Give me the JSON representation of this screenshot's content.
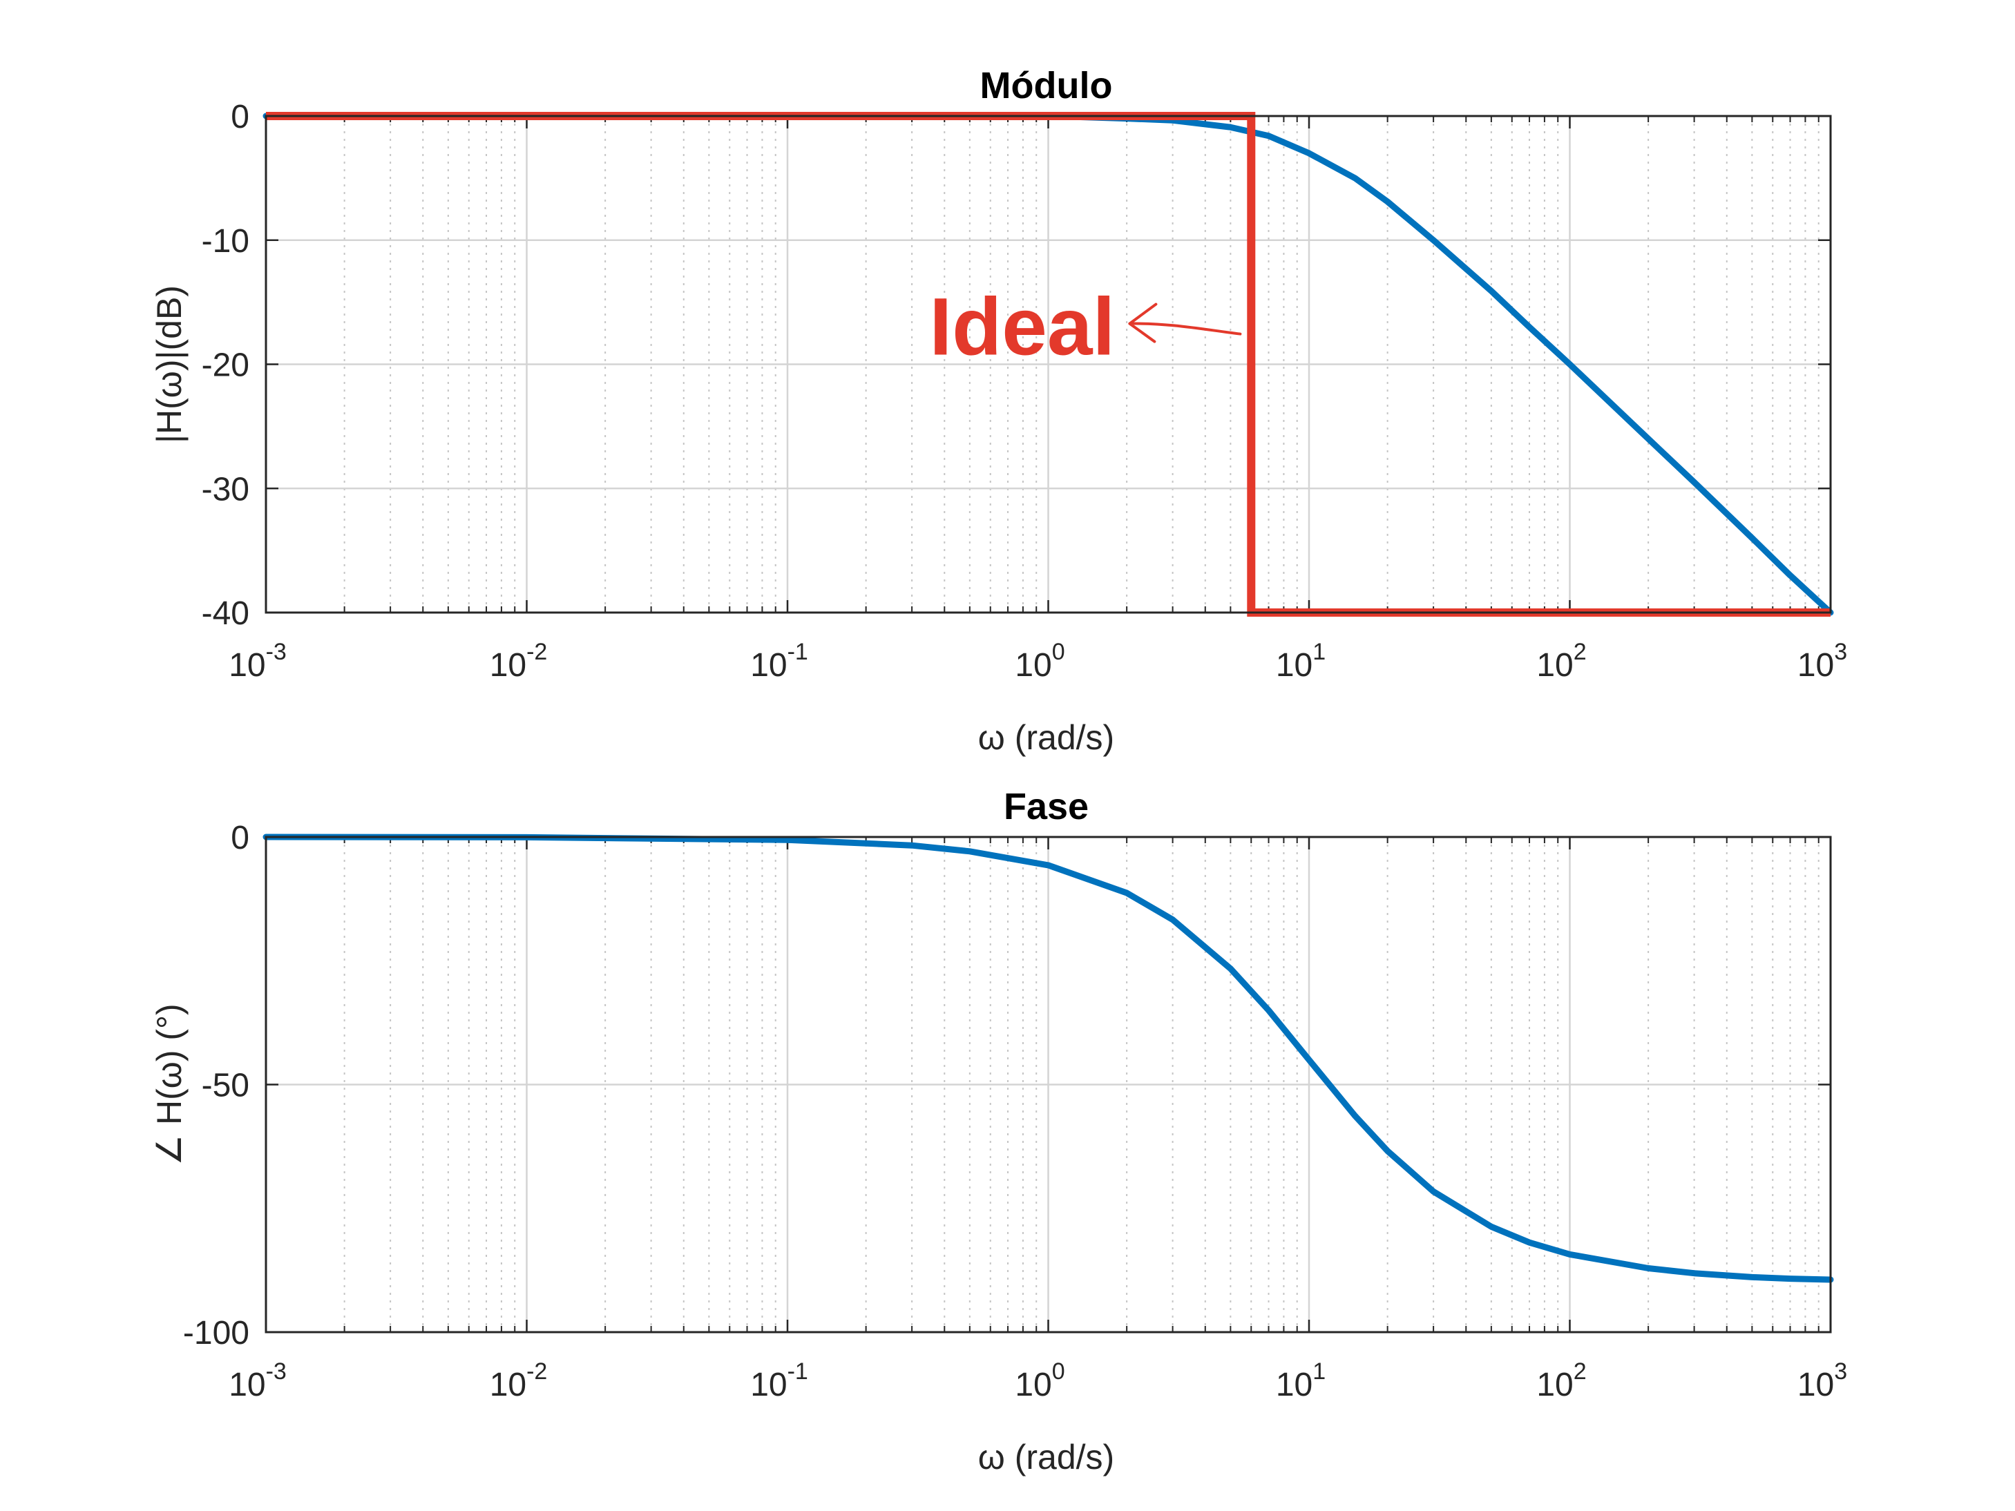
{
  "colors": {
    "curve": "#0072bd",
    "ideal": "#e3392b",
    "axis": "#262626",
    "grid_major": "#d4d4d4",
    "grid_minor": "#c4c4c4"
  },
  "chart_data": [
    {
      "type": "line",
      "title": "Módulo",
      "xlabel": "ω (rad/s)",
      "ylabel": "|H(ω)|(dB)",
      "xscale": "log",
      "xlim": [
        0.001,
        1000
      ],
      "ylim": [
        -40,
        0
      ],
      "xticks": [
        0.001,
        0.01,
        0.1,
        1,
        10,
        100,
        1000
      ],
      "xticklabels": [
        {
          "base": "10",
          "exp": "-3"
        },
        {
          "base": "10",
          "exp": "-2"
        },
        {
          "base": "10",
          "exp": "-1"
        },
        {
          "base": "10",
          "exp": "0"
        },
        {
          "base": "10",
          "exp": "1"
        },
        {
          "base": "10",
          "exp": "2"
        },
        {
          "base": "10",
          "exp": "3"
        }
      ],
      "yticks": [
        0,
        -10,
        -20,
        -30,
        -40
      ],
      "yticklabels": [
        "0",
        "-10",
        "-20",
        "-30",
        "-40"
      ],
      "grid": true,
      "series": [
        {
          "color": "#0072bd",
          "x": [
            0.001,
            0.01,
            0.1,
            1,
            2,
            3,
            5,
            7,
            10,
            15,
            20,
            30,
            50,
            70,
            100,
            200,
            300,
            500,
            700,
            1000
          ],
          "y": [
            0,
            0,
            0,
            0,
            -0.2,
            -0.35,
            -0.9,
            -1.6,
            -3.0,
            -5.0,
            -6.9,
            -10.0,
            -14.1,
            -17.0,
            -20.0,
            -26.0,
            -29.5,
            -34.0,
            -37.0,
            -40.0
          ]
        },
        {
          "color": "#e3392b",
          "x": [
            0.001,
            6,
            6,
            1000
          ],
          "y": [
            0,
            0,
            -40,
            -40
          ]
        }
      ],
      "annotations": [
        {
          "text": "Ideal",
          "x": 0.35,
          "y": -17
        }
      ]
    },
    {
      "type": "line",
      "title": "Fase",
      "xlabel": "ω (rad/s)",
      "ylabel": "∠ H(ω) (°)",
      "xscale": "log",
      "xlim": [
        0.001,
        1000
      ],
      "ylim": [
        -100,
        0
      ],
      "xticks": [
        0.001,
        0.01,
        0.1,
        1,
        10,
        100,
        1000
      ],
      "xticklabels": [
        {
          "base": "10",
          "exp": "-3"
        },
        {
          "base": "10",
          "exp": "-2"
        },
        {
          "base": "10",
          "exp": "-1"
        },
        {
          "base": "10",
          "exp": "0"
        },
        {
          "base": "10",
          "exp": "1"
        },
        {
          "base": "10",
          "exp": "2"
        },
        {
          "base": "10",
          "exp": "3"
        }
      ],
      "yticks": [
        0,
        -50,
        -100
      ],
      "yticklabels": [
        "0",
        "-50",
        "-100"
      ],
      "grid": true,
      "series": [
        {
          "color": "#0072bd",
          "x": [
            0.001,
            0.01,
            0.1,
            0.3,
            0.5,
            1,
            2,
            3,
            5,
            7,
            10,
            15,
            20,
            30,
            50,
            70,
            100,
            200,
            300,
            500,
            700,
            1000
          ],
          "y": [
            0,
            -0.06,
            -0.6,
            -1.7,
            -2.9,
            -5.7,
            -11.3,
            -16.7,
            -26.6,
            -35.0,
            -45.0,
            -56.3,
            -63.4,
            -71.6,
            -78.7,
            -81.9,
            -84.3,
            -87.1,
            -88.1,
            -88.9,
            -89.2,
            -89.4
          ]
        }
      ]
    }
  ]
}
